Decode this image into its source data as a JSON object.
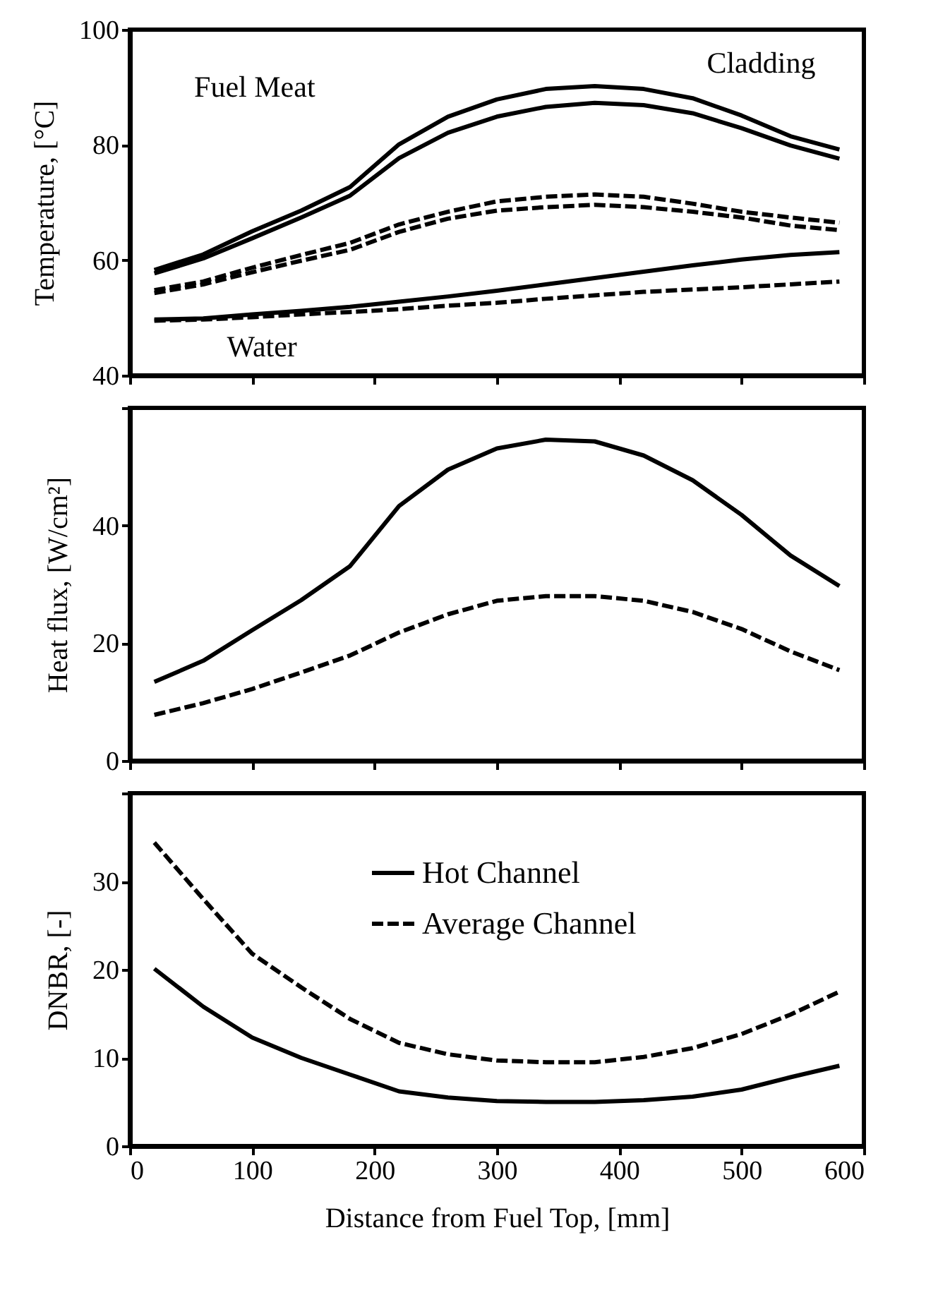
{
  "chart_data": [
    {
      "type": "line",
      "ylabel": "Temperature, [°C]",
      "x": [
        20,
        60,
        100,
        140,
        180,
        220,
        260,
        300,
        340,
        380,
        420,
        460,
        500,
        540,
        580
      ],
      "xlim": [
        0,
        600
      ],
      "xticks": [
        0,
        100,
        200,
        300,
        400,
        500,
        600
      ],
      "ylim": [
        40,
        100
      ],
      "yticks": [
        40,
        60,
        80,
        100
      ],
      "tick_labels": "y",
      "annotations": [
        "Fuel Meat",
        "Cladding",
        "Water"
      ],
      "series": [
        {
          "color": "#000000",
          "line_style": "solid",
          "values": [
            58.3,
            61.0,
            65.0,
            68.6,
            72.7,
            80.1,
            84.9,
            87.9,
            89.7,
            90.2,
            89.7,
            88.1,
            85.1,
            81.5,
            79.2
          ]
        },
        {
          "color": "#000000",
          "line_style": "solid",
          "values": [
            57.7,
            60.3,
            63.8,
            67.4,
            71.2,
            77.7,
            82.1,
            84.9,
            86.6,
            87.3,
            86.9,
            85.5,
            82.9,
            79.9,
            77.6
          ]
        },
        {
          "color": "#000000",
          "line_style": "dashed",
          "values": [
            54.8,
            56.3,
            58.7,
            60.9,
            63.0,
            66.2,
            68.4,
            70.2,
            71.0,
            71.4,
            71.0,
            69.8,
            68.4,
            67.4,
            66.5
          ]
        },
        {
          "color": "#000000",
          "line_style": "dashed",
          "values": [
            54.3,
            55.8,
            57.9,
            59.9,
            61.8,
            64.9,
            67.2,
            68.6,
            69.2,
            69.6,
            69.2,
            68.4,
            67.4,
            66.0,
            65.2
          ]
        },
        {
          "color": "#000000",
          "line_style": "solid",
          "values": [
            49.7,
            49.9,
            50.6,
            51.2,
            51.9,
            52.8,
            53.7,
            54.7,
            55.8,
            56.9,
            58.0,
            59.1,
            60.1,
            60.9,
            61.4
          ]
        },
        {
          "color": "#000000",
          "line_style": "dashed",
          "values": [
            49.5,
            49.7,
            50.1,
            50.6,
            51.0,
            51.5,
            52.1,
            52.6,
            53.3,
            53.9,
            54.5,
            54.9,
            55.3,
            55.8,
            56.3
          ]
        }
      ]
    },
    {
      "type": "line",
      "ylabel": "Heat flux,  [W/cm²]",
      "x": [
        20,
        60,
        100,
        140,
        180,
        220,
        260,
        300,
        340,
        380,
        420,
        460,
        500,
        540,
        580
      ],
      "xlim": [
        0,
        600
      ],
      "xticks": [
        0,
        100,
        200,
        300,
        400,
        500,
        600
      ],
      "ylim": [
        0,
        60
      ],
      "yticks": [
        0,
        20,
        40,
        {
          "value": 60,
          "label": null
        }
      ],
      "tick_labels": "y",
      "series": [
        {
          "color": "#000000",
          "line_style": "solid",
          "values": [
            13.4,
            17.0,
            22.2,
            27.3,
            33.1,
            43.3,
            49.5,
            53.1,
            54.6,
            54.3,
            51.9,
            47.7,
            41.8,
            34.9,
            29.7
          ]
        },
        {
          "color": "#000000",
          "line_style": "dashed",
          "values": [
            7.8,
            9.8,
            12.2,
            15.0,
            17.9,
            21.8,
            24.9,
            27.2,
            28.0,
            28.0,
            27.2,
            25.3,
            22.4,
            18.6,
            15.4
          ]
        }
      ]
    },
    {
      "type": "line",
      "ylabel": "DNBR,  [-]",
      "xlabel": "Distance from Fuel Top,  [mm]",
      "x": [
        20,
        60,
        100,
        140,
        180,
        220,
        260,
        300,
        340,
        380,
        420,
        460,
        500,
        540,
        580
      ],
      "xlim": [
        0,
        600
      ],
      "xticks": [
        0,
        100,
        200,
        300,
        400,
        500,
        600
      ],
      "ylim": [
        0,
        40
      ],
      "yticks": [
        0,
        10,
        20,
        30,
        {
          "value": 40,
          "label": null
        }
      ],
      "legend": "top right",
      "series": [
        {
          "name": "Hot Channel",
          "color": "#000000",
          "line_style": "solid",
          "values": [
            20.1,
            15.8,
            12.3,
            10.0,
            8.1,
            6.2,
            5.5,
            5.1,
            5.0,
            5.0,
            5.2,
            5.6,
            6.4,
            7.8,
            9.1
          ]
        },
        {
          "name": "Average Channel",
          "color": "#000000",
          "line_style": "dashed",
          "values": [
            34.4,
            28.0,
            21.8,
            18.0,
            14.4,
            11.7,
            10.4,
            9.7,
            9.5,
            9.5,
            10.1,
            11.1,
            12.7,
            14.9,
            17.5
          ]
        }
      ]
    }
  ]
}
